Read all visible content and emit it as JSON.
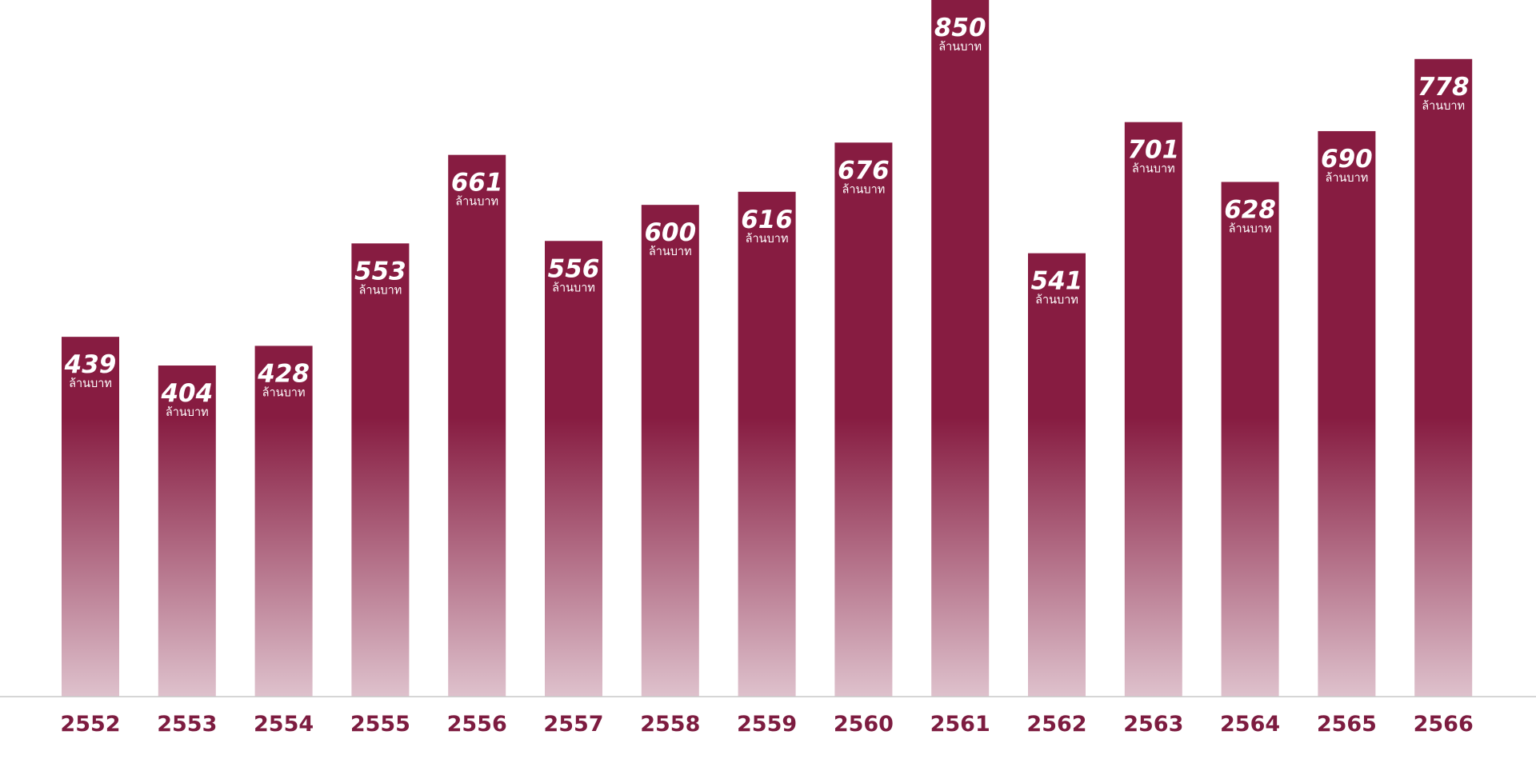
{
  "chart_data": {
    "type": "bar",
    "categories": [
      "2552",
      "2553",
      "2554",
      "2555",
      "2556",
      "2557",
      "2558",
      "2559",
      "2560",
      "2561",
      "2562",
      "2563",
      "2564",
      "2565",
      "2566"
    ],
    "values": [
      439,
      404,
      428,
      553,
      661,
      556,
      600,
      616,
      676,
      850,
      541,
      701,
      628,
      690,
      778
    ],
    "data_label_unit": "ล้านบาท",
    "title": "",
    "xlabel": "",
    "ylabel": "",
    "ylim": [
      0,
      850
    ],
    "grid": false,
    "legend": "none"
  },
  "colors": {
    "bar": "#871c41",
    "bar_fade": "#dec1cc",
    "year_label": "#7d1c40",
    "baseline": "#c8c8c8"
  }
}
